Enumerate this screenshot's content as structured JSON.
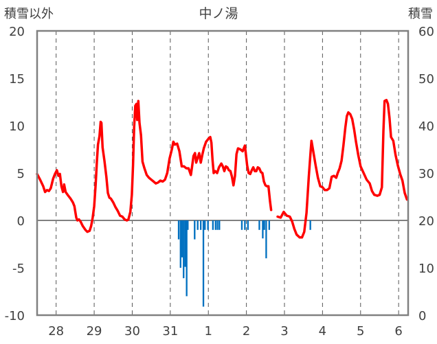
{
  "chart_data": {
    "type": "line",
    "title": "中ノ湯",
    "y_left_label": "積雪以外",
    "y_right_label": "積雪",
    "y_left_range": [
      -10,
      20
    ],
    "y_left_ticks": [
      "20",
      "15",
      "10",
      "5",
      "0",
      "-5",
      "-10"
    ],
    "y_right_range": [
      0,
      60
    ],
    "y_right_ticks": [
      "60",
      "50",
      "40",
      "30",
      "20",
      "10",
      "0"
    ],
    "x_range": [
      0,
      9.75
    ],
    "x_ticks": [
      {
        "pos": 0.5,
        "label": "28"
      },
      {
        "pos": 1.5,
        "label": "29"
      },
      {
        "pos": 2.5,
        "label": "30"
      },
      {
        "pos": 3.5,
        "label": "31"
      },
      {
        "pos": 4.5,
        "label": "1"
      },
      {
        "pos": 5.5,
        "label": "2"
      },
      {
        "pos": 6.5,
        "label": "3"
      },
      {
        "pos": 7.5,
        "label": "4"
      },
      {
        "pos": 8.5,
        "label": "5"
      },
      {
        "pos": 9.5,
        "label": "6"
      }
    ],
    "grid": "vertical-dashed",
    "colors": {
      "line": "#ff0000",
      "bars": "#0070c0",
      "grid": "#555555",
      "axis": "#808080",
      "zero": "#808080"
    },
    "series": [
      {
        "type": "line",
        "segments": [
          [
            [
              0,
              4.9
            ],
            [
              0.08,
              4.3
            ],
            [
              0.16,
              3.6
            ],
            [
              0.21,
              3.0
            ],
            [
              0.26,
              3.2
            ],
            [
              0.31,
              3.1
            ],
            [
              0.36,
              3.4
            ],
            [
              0.42,
              4.4
            ],
            [
              0.47,
              4.9
            ],
            [
              0.52,
              5.3
            ],
            [
              0.56,
              4.7
            ],
            [
              0.6,
              4.9
            ],
            [
              0.64,
              3.6
            ],
            [
              0.68,
              3.0
            ],
            [
              0.71,
              3.8
            ],
            [
              0.75,
              3.0
            ],
            [
              0.82,
              2.6
            ],
            [
              0.88,
              2.3
            ],
            [
              0.94,
              1.9
            ],
            [
              0.98,
              1.5
            ],
            [
              1.0,
              1.0
            ],
            [
              1.03,
              0.3
            ],
            [
              1.06,
              0.0
            ],
            [
              1.1,
              0.1
            ],
            [
              1.14,
              -0.1
            ],
            [
              1.2,
              -0.6
            ],
            [
              1.27,
              -1.0
            ],
            [
              1.32,
              -1.2
            ],
            [
              1.38,
              -1.1
            ],
            [
              1.42,
              -0.6
            ],
            [
              1.46,
              0.3
            ],
            [
              1.5,
              1.5
            ],
            [
              1.54,
              3.9
            ],
            [
              1.57,
              6.2
            ],
            [
              1.6,
              8.0
            ],
            [
              1.64,
              8.9
            ],
            [
              1.67,
              10.4
            ],
            [
              1.69,
              10.3
            ],
            [
              1.72,
              7.7
            ],
            [
              1.77,
              6.3
            ],
            [
              1.82,
              4.6
            ],
            [
              1.86,
              2.9
            ],
            [
              1.9,
              2.4
            ],
            [
              1.94,
              2.3
            ],
            [
              2.0,
              1.9
            ],
            [
              2.06,
              1.4
            ],
            [
              2.12,
              1.0
            ],
            [
              2.18,
              0.5
            ],
            [
              2.24,
              0.4
            ],
            [
              2.3,
              0.1
            ],
            [
              2.36,
              0.0
            ],
            [
              2.4,
              0.1
            ],
            [
              2.45,
              0.9
            ],
            [
              2.49,
              2.7
            ],
            [
              2.52,
              5.8
            ],
            [
              2.55,
              9.8
            ],
            [
              2.58,
              12.1
            ],
            [
              2.61,
              12.3
            ],
            [
              2.63,
              10.6
            ],
            [
              2.66,
              12.6
            ],
            [
              2.69,
              10.3
            ],
            [
              2.73,
              9.0
            ],
            [
              2.77,
              6.2
            ],
            [
              2.82,
              5.5
            ],
            [
              2.88,
              4.8
            ],
            [
              2.94,
              4.5
            ],
            [
              3.0,
              4.3
            ],
            [
              3.06,
              4.1
            ],
            [
              3.12,
              3.9
            ],
            [
              3.18,
              4.0
            ],
            [
              3.24,
              4.2
            ],
            [
              3.3,
              4.1
            ],
            [
              3.36,
              4.3
            ],
            [
              3.42,
              5.0
            ],
            [
              3.48,
              6.5
            ],
            [
              3.54,
              7.5
            ],
            [
              3.58,
              8.3
            ],
            [
              3.62,
              8.0
            ],
            [
              3.68,
              8.1
            ],
            [
              3.74,
              7.3
            ],
            [
              3.8,
              5.7
            ],
            [
              3.86,
              5.7
            ],
            [
              3.92,
              5.5
            ],
            [
              3.98,
              5.5
            ],
            [
              4.04,
              4.8
            ],
            [
              4.07,
              5.6
            ],
            [
              4.11,
              6.8
            ],
            [
              4.15,
              7.1
            ],
            [
              4.18,
              6.1
            ],
            [
              4.22,
              6.6
            ],
            [
              4.26,
              7.1
            ],
            [
              4.3,
              6.1
            ],
            [
              4.34,
              6.9
            ],
            [
              4.38,
              7.6
            ],
            [
              4.44,
              8.3
            ],
            [
              4.5,
              8.6
            ],
            [
              4.55,
              8.8
            ],
            [
              4.58,
              8.2
            ],
            [
              4.61,
              6.4
            ],
            [
              4.64,
              5.0
            ],
            [
              4.68,
              5.2
            ],
            [
              4.73,
              5.0
            ],
            [
              4.78,
              5.6
            ],
            [
              4.84,
              6.0
            ],
            [
              4.88,
              5.7
            ],
            [
              4.92,
              5.2
            ],
            [
              4.96,
              5.7
            ],
            [
              5.0,
              5.6
            ],
            [
              5.04,
              5.3
            ],
            [
              5.08,
              5.2
            ],
            [
              5.12,
              4.6
            ],
            [
              5.16,
              3.7
            ],
            [
              5.2,
              4.7
            ],
            [
              5.24,
              7.0
            ],
            [
              5.28,
              7.6
            ],
            [
              5.34,
              7.5
            ],
            [
              5.4,
              7.3
            ],
            [
              5.46,
              7.9
            ],
            [
              5.48,
              7.2
            ],
            [
              5.52,
              5.8
            ],
            [
              5.56,
              5.0
            ],
            [
              5.6,
              4.9
            ],
            [
              5.64,
              5.3
            ],
            [
              5.68,
              5.6
            ],
            [
              5.72,
              5.2
            ],
            [
              5.76,
              5.2
            ],
            [
              5.8,
              5.6
            ],
            [
              5.84,
              5.5
            ],
            [
              5.88,
              5.1
            ],
            [
              5.92,
              5.0
            ],
            [
              5.96,
              4.1
            ],
            [
              6.0,
              3.7
            ],
            [
              6.04,
              3.6
            ],
            [
              6.08,
              3.6
            ],
            [
              6.12,
              2.0
            ],
            [
              6.15,
              1.1
            ]
          ],
          [
            [
              6.32,
              0.4
            ],
            [
              6.4,
              0.3
            ],
            [
              6.48,
              0.9
            ],
            [
              6.56,
              0.5
            ],
            [
              6.64,
              0.4
            ],
            [
              6.7,
              -0.1
            ],
            [
              6.76,
              -0.9
            ],
            [
              6.82,
              -1.5
            ],
            [
              6.9,
              -1.8
            ],
            [
              6.96,
              -1.8
            ],
            [
              7.02,
              -1.2
            ],
            [
              7.08,
              0.8
            ],
            [
              7.14,
              4.6
            ],
            [
              7.19,
              7.4
            ],
            [
              7.21,
              8.4
            ],
            [
              7.26,
              7.2
            ],
            [
              7.32,
              5.8
            ],
            [
              7.38,
              4.5
            ],
            [
              7.44,
              3.6
            ],
            [
              7.5,
              3.5
            ],
            [
              7.56,
              3.2
            ],
            [
              7.62,
              3.2
            ],
            [
              7.68,
              3.4
            ],
            [
              7.74,
              4.6
            ],
            [
              7.8,
              4.7
            ],
            [
              7.86,
              4.5
            ],
            [
              7.9,
              5.0
            ],
            [
              7.95,
              5.5
            ],
            [
              8.0,
              6.3
            ],
            [
              8.05,
              7.9
            ],
            [
              8.1,
              9.8
            ],
            [
              8.14,
              11.0
            ],
            [
              8.18,
              11.4
            ],
            [
              8.23,
              11.2
            ],
            [
              8.28,
              10.7
            ],
            [
              8.33,
              9.6
            ],
            [
              8.38,
              8.3
            ],
            [
              8.44,
              6.9
            ],
            [
              8.5,
              5.7
            ],
            [
              8.58,
              5.0
            ],
            [
              8.66,
              4.3
            ],
            [
              8.74,
              3.9
            ],
            [
              8.8,
              3.1
            ],
            [
              8.86,
              2.7
            ],
            [
              8.94,
              2.6
            ],
            [
              9.0,
              2.7
            ],
            [
              9.06,
              3.5
            ],
            [
              9.1,
              9.4
            ],
            [
              9.13,
              12.6
            ],
            [
              9.18,
              12.7
            ],
            [
              9.22,
              12.3
            ],
            [
              9.26,
              10.8
            ],
            [
              9.3,
              8.8
            ],
            [
              9.36,
              8.4
            ],
            [
              9.42,
              6.9
            ],
            [
              9.48,
              5.8
            ],
            [
              9.54,
              4.9
            ],
            [
              9.6,
              4.2
            ],
            [
              9.66,
              2.9
            ],
            [
              9.72,
              2.2
            ]
          ]
        ]
      },
      {
        "type": "bar",
        "values": [
          [
            3.72,
            -2.0
          ],
          [
            3.77,
            -5.0
          ],
          [
            3.81,
            -3.9
          ],
          [
            3.85,
            -6.1
          ],
          [
            3.89,
            -4.9
          ],
          [
            3.93,
            -8.0
          ],
          [
            3.96,
            -1.0
          ],
          [
            4.14,
            -2.0
          ],
          [
            4.22,
            -1.0
          ],
          [
            4.3,
            -1.0
          ],
          [
            4.37,
            -9.1
          ],
          [
            4.41,
            -1.0
          ],
          [
            4.49,
            -1.0
          ],
          [
            4.62,
            -1.0
          ],
          [
            4.69,
            -1.0
          ],
          [
            4.74,
            -1.0
          ],
          [
            4.79,
            -1.0
          ],
          [
            5.38,
            -1.0
          ],
          [
            5.46,
            -1.0
          ],
          [
            5.54,
            -1.0
          ],
          [
            5.84,
            -1.0
          ],
          [
            5.93,
            -1.9
          ],
          [
            5.97,
            -1.0
          ],
          [
            6.02,
            -4.0
          ],
          [
            6.1,
            -1.0
          ],
          [
            7.18,
            -1.0
          ]
        ]
      }
    ]
  }
}
